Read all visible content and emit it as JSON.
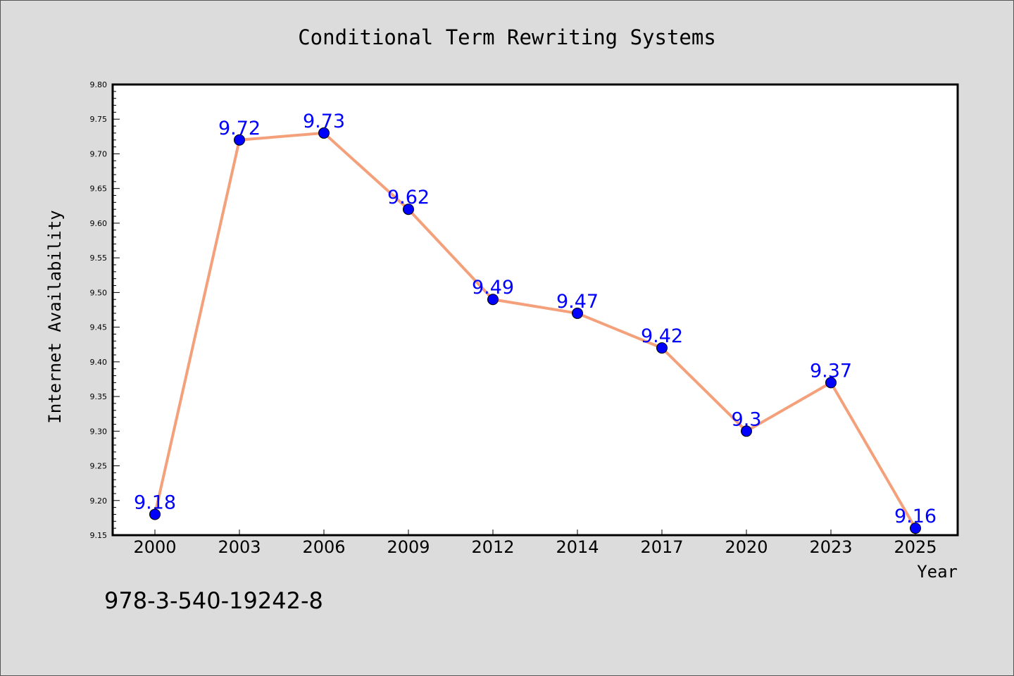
{
  "chart_data": {
    "type": "line",
    "title": "Conditional Term Rewriting Systems",
    "xlabel": "Year",
    "ylabel": "Internet Availability",
    "categories": [
      "2000",
      "2003",
      "2006",
      "2009",
      "2012",
      "2014",
      "2017",
      "2020",
      "2023",
      "2025"
    ],
    "series": [
      {
        "values": [
          9.18,
          9.72,
          9.73,
          9.62,
          9.49,
          9.47,
          9.42,
          9.3,
          9.37,
          9.16
        ],
        "labels": [
          "9.18",
          "9.72",
          "9.73",
          "9.62",
          "9.49",
          "9.47",
          "9.42",
          "9.3",
          "9.37",
          "9.16"
        ],
        "line_color": "#f4a07a",
        "marker_color": "#0000ff"
      }
    ],
    "yticks": [
      "9.15",
      "9.20",
      "9.25",
      "9.30",
      "9.35",
      "9.40",
      "9.45",
      "9.50",
      "9.55",
      "9.60",
      "9.65",
      "9.70",
      "9.75",
      "9.80"
    ],
    "ylim": [
      9.15,
      9.8
    ],
    "grid": false,
    "legend": "none"
  },
  "footnote": "978-3-540-19242-8",
  "colors": {
    "background": "#dcdcdc",
    "plot_background": "#ffffff",
    "axis": "#000000",
    "label_text": "#0000ff"
  }
}
